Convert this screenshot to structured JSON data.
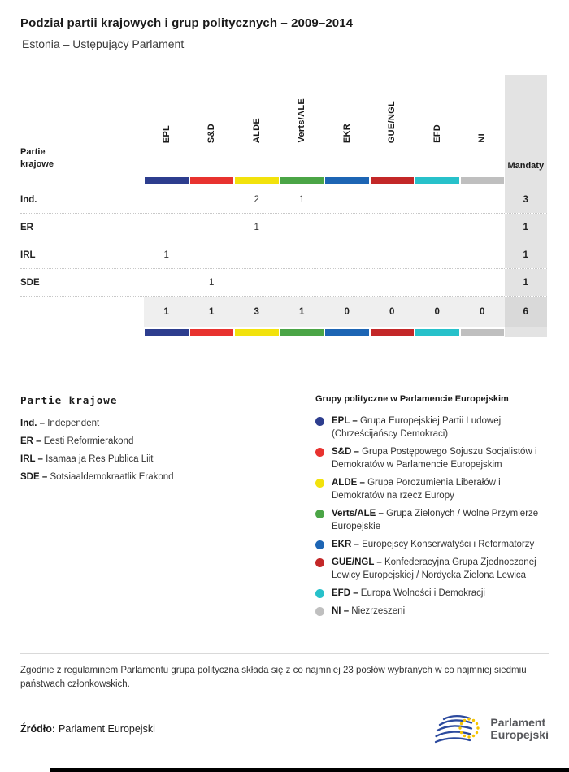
{
  "header": {
    "title": "Podział partii krajowych i grup politycznych – 2009–2014",
    "subtitle": "Estonia – Ustępujący Parlament"
  },
  "table": {
    "row_header_label": "Partie krajowe",
    "mandates_label": "Mandaty"
  },
  "chart_data": {
    "type": "table",
    "title": "Podział partii krajowych i grup politycznych – 2009–2014",
    "subtitle": "Estonia – Ustępujący Parlament",
    "columns": [
      "EPL",
      "S&D",
      "ALDE",
      "Verts/ALE",
      "EKR",
      "GUE/NGL",
      "EFD",
      "NI"
    ],
    "group_colors": {
      "EPL": "#2d3d8e",
      "S&D": "#e8322f",
      "ALDE": "#f2e20c",
      "Verts/ALE": "#4ba546",
      "EKR": "#1d65b4",
      "GUE/NGL": "#c32728",
      "EFD": "#27c1ca",
      "NI": "#bfbfbf"
    },
    "rows": [
      {
        "party": "Ind.",
        "values": [
          null,
          null,
          2,
          1,
          null,
          null,
          null,
          null
        ],
        "mandaty": 3
      },
      {
        "party": "ER",
        "values": [
          null,
          null,
          1,
          null,
          null,
          null,
          null,
          null
        ],
        "mandaty": 1
      },
      {
        "party": "IRL",
        "values": [
          1,
          null,
          null,
          null,
          null,
          null,
          null,
          null
        ],
        "mandaty": 1
      },
      {
        "party": "SDE",
        "values": [
          null,
          1,
          null,
          null,
          null,
          null,
          null,
          null
        ],
        "mandaty": 1
      }
    ],
    "totals": {
      "values": [
        1,
        1,
        3,
        1,
        0,
        0,
        0,
        0
      ],
      "mandaty": 6
    }
  },
  "legend_parties": {
    "heading": "Partie krajowe",
    "items": [
      {
        "abbr": "Ind. –",
        "name": "Independent"
      },
      {
        "abbr": "ER –",
        "name": "Eesti Reformierakond"
      },
      {
        "abbr": "IRL –",
        "name": "Isamaa ja Res Publica Liit"
      },
      {
        "abbr": "SDE –",
        "name": "Sotsiaaldemokraatlik Erakond"
      }
    ]
  },
  "legend_groups": {
    "heading": "Grupy polityczne w Parlamencie Europejskim",
    "items": [
      {
        "abbr": "EPL –",
        "name": "Grupa Europejskiej Partii Ludowej (Chrześcijańscy Demokraci)",
        "color": "#2d3d8e"
      },
      {
        "abbr": "S&D –",
        "name": "Grupa Postępowego Sojuszu Socjalistów i Demokratów w Parlamencie Europejskim",
        "color": "#e8322f"
      },
      {
        "abbr": "ALDE –",
        "name": "Grupa Porozumienia Liberałów i Demokratów na rzecz Europy",
        "color": "#f2e20c"
      },
      {
        "abbr": "Verts/ALE –",
        "name": "Grupa Zielonych / Wolne Przymierze Europejskie",
        "color": "#4ba546"
      },
      {
        "abbr": "EKR –",
        "name": "Europejscy Konserwatyści i Reformatorzy",
        "color": "#1d65b4"
      },
      {
        "abbr": "GUE/NGL –",
        "name": "Konfederacyjna Grupa Zjednoczonej Lewicy Europejskiej / Nordycka Zielona Lewica",
        "color": "#c32728"
      },
      {
        "abbr": "EFD –",
        "name": "Europa Wolności i Demokracji",
        "color": "#27c1ca"
      },
      {
        "abbr": "NI –",
        "name": "Niezrzeszeni",
        "color": "#bfbfbf"
      }
    ]
  },
  "note": "Zgodnie z regulaminem Parlamentu grupa polityczna składa się z co najmniej 23 posłów wybranych w co najmniej siedmiu państwach członkowskich.",
  "source": {
    "label": "Źródło:",
    "value": "Parlament Europejski"
  },
  "logo": {
    "line1": "Parlament",
    "line2": "Europejski"
  }
}
